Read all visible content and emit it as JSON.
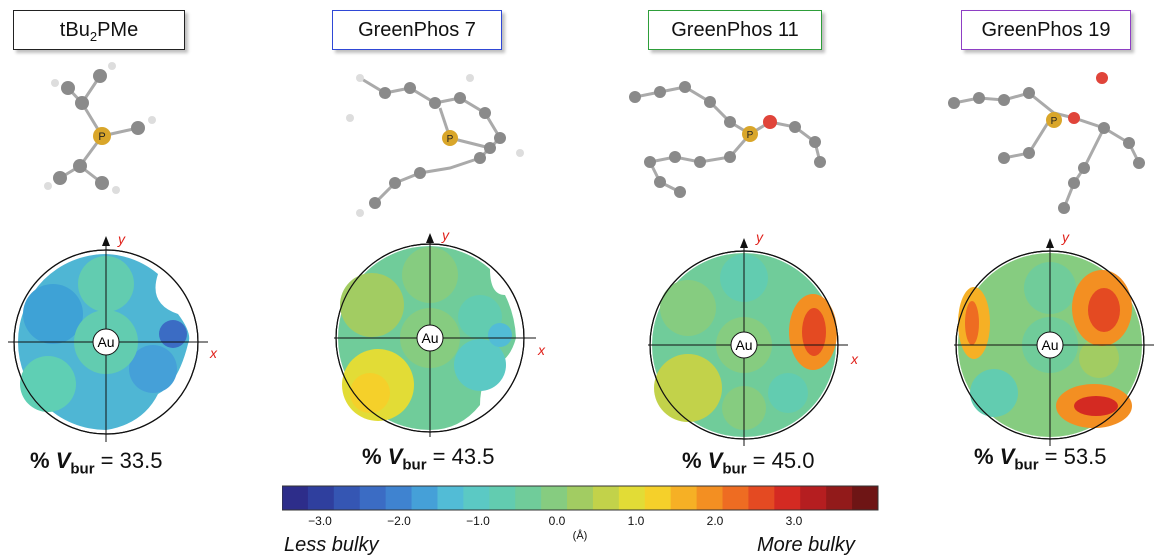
{
  "panels": [
    {
      "name": "tBu",
      "sub": "2",
      "tail": "PMe",
      "border": "#222222",
      "vbur_value": "33.5"
    },
    {
      "name": "GreenPhos 7",
      "sub": "",
      "tail": "",
      "border": "#2f48d6",
      "vbur_value": "43.5"
    },
    {
      "name": "GreenPhos 11",
      "sub": "",
      "tail": "",
      "border": "#2e9e3a",
      "vbur_value": "45.0"
    },
    {
      "name": "GreenPhos 19",
      "sub": "",
      "tail": "",
      "border": "#8e3fc4",
      "vbur_value": "53.5"
    }
  ],
  "map": {
    "center_label": "Au",
    "x_axis": "x",
    "y_axis": "y",
    "axis_color": "#e0201a"
  },
  "atoms": {
    "phosphorus": "P",
    "phosphorus_color": "#d9a62a",
    "oxygen_color": "#e0443a",
    "carbon_color": "#8a8a8a"
  },
  "vbur": {
    "prefix": "%",
    "symbol": "V",
    "subscript": "bur",
    "equals": "="
  },
  "colorbar": {
    "ticks": [
      "−3.0",
      "−2.0",
      "−1.0",
      "0.0",
      "1.0",
      "2.0",
      "3.0"
    ],
    "unit": "(Å)",
    "left_label": "Less bulky",
    "right_label": "More bulky",
    "colors": [
      "#2d2d8a",
      "#2f3f9e",
      "#3556b3",
      "#3b6cc4",
      "#3f83d0",
      "#45a0d8",
      "#52bcd6",
      "#5bc9c4",
      "#62ccb0",
      "#70cc9a",
      "#86cc80",
      "#a2cc62",
      "#c2d24a",
      "#e2dc36",
      "#f5d02a",
      "#f6b025",
      "#f38f22",
      "#ee6c22",
      "#e44a22",
      "#d42a22",
      "#b51e20",
      "#921a1a",
      "#6e1515"
    ]
  }
}
